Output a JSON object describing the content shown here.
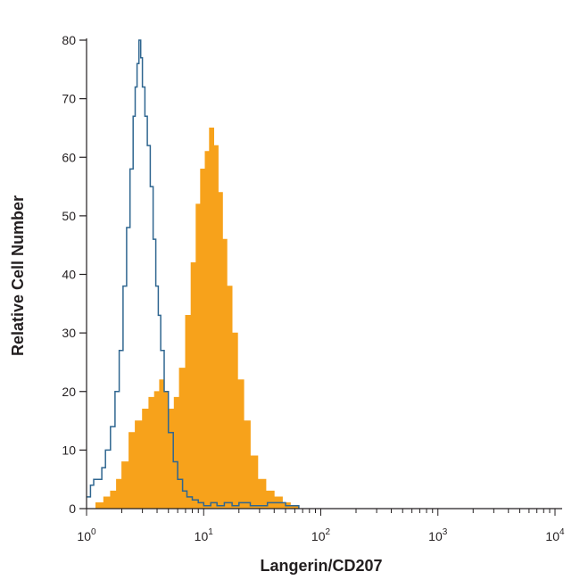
{
  "chart_data": {
    "type": "area",
    "title": "",
    "xlabel": "Langerin/CD207",
    "ylabel": "Relative Cell Number",
    "x_scale": "log",
    "xlim": [
      1,
      10000
    ],
    "ylim": [
      0,
      80
    ],
    "y_ticks": [
      0,
      10,
      20,
      30,
      40,
      50,
      60,
      70,
      80
    ],
    "x_tick_labels": [
      {
        "value": 1,
        "base": "10",
        "exp": "0"
      },
      {
        "value": 10,
        "base": "10",
        "exp": "1"
      },
      {
        "value": 100,
        "base": "10",
        "exp": "2"
      },
      {
        "value": 1000,
        "base": "10",
        "exp": "3"
      },
      {
        "value": 10000,
        "base": "10",
        "exp": "4"
      }
    ],
    "grid": false,
    "legend": "none",
    "series": [
      {
        "style": "filled",
        "color": "#f7a21b",
        "x": [
          1.0,
          1.2,
          1.4,
          1.6,
          1.8,
          2.0,
          2.3,
          2.6,
          3.0,
          3.4,
          3.8,
          4.2,
          4.6,
          5.0,
          5.6,
          6.2,
          7.0,
          7.8,
          8.6,
          9.4,
          10.3,
          11.2,
          12.2,
          13.3,
          14.5,
          15.8,
          17.5,
          19.5,
          22.0,
          25.0,
          29.0,
          34.0,
          40.0,
          47.0,
          55.0,
          65.0
        ],
        "y": [
          0,
          1,
          2,
          3,
          5,
          8,
          13,
          15,
          17,
          19,
          20,
          22,
          20,
          17,
          19,
          24,
          33,
          42,
          52,
          58,
          61,
          65,
          62,
          54,
          46,
          38,
          30,
          22,
          15,
          9,
          5,
          3,
          2,
          1,
          0.5,
          0
        ]
      },
      {
        "style": "outline",
        "color": "#2f6690",
        "x": [
          1.0,
          1.08,
          1.15,
          1.25,
          1.35,
          1.45,
          1.6,
          1.75,
          1.9,
          2.05,
          2.2,
          2.35,
          2.5,
          2.6,
          2.7,
          2.8,
          2.9,
          3.0,
          3.15,
          3.3,
          3.5,
          3.7,
          3.9,
          4.1,
          4.3,
          4.6,
          5.0,
          5.5,
          6.0,
          6.6,
          7.2,
          8.0,
          9.0,
          10.0,
          11.5,
          13.0,
          15.0,
          17.5,
          20.0,
          25.0,
          35.0,
          50.0,
          65.0
        ],
        "y": [
          2,
          4,
          5,
          5,
          7,
          10,
          14,
          20,
          27,
          38,
          48,
          58,
          67,
          72,
          76,
          80,
          77,
          72,
          67,
          62,
          55,
          46,
          38,
          33,
          27,
          20,
          13,
          8,
          5,
          3,
          2,
          1.5,
          1,
          0.5,
          1,
          0.5,
          1,
          0.5,
          1,
          0.5,
          1,
          0.5,
          0
        ]
      }
    ]
  }
}
